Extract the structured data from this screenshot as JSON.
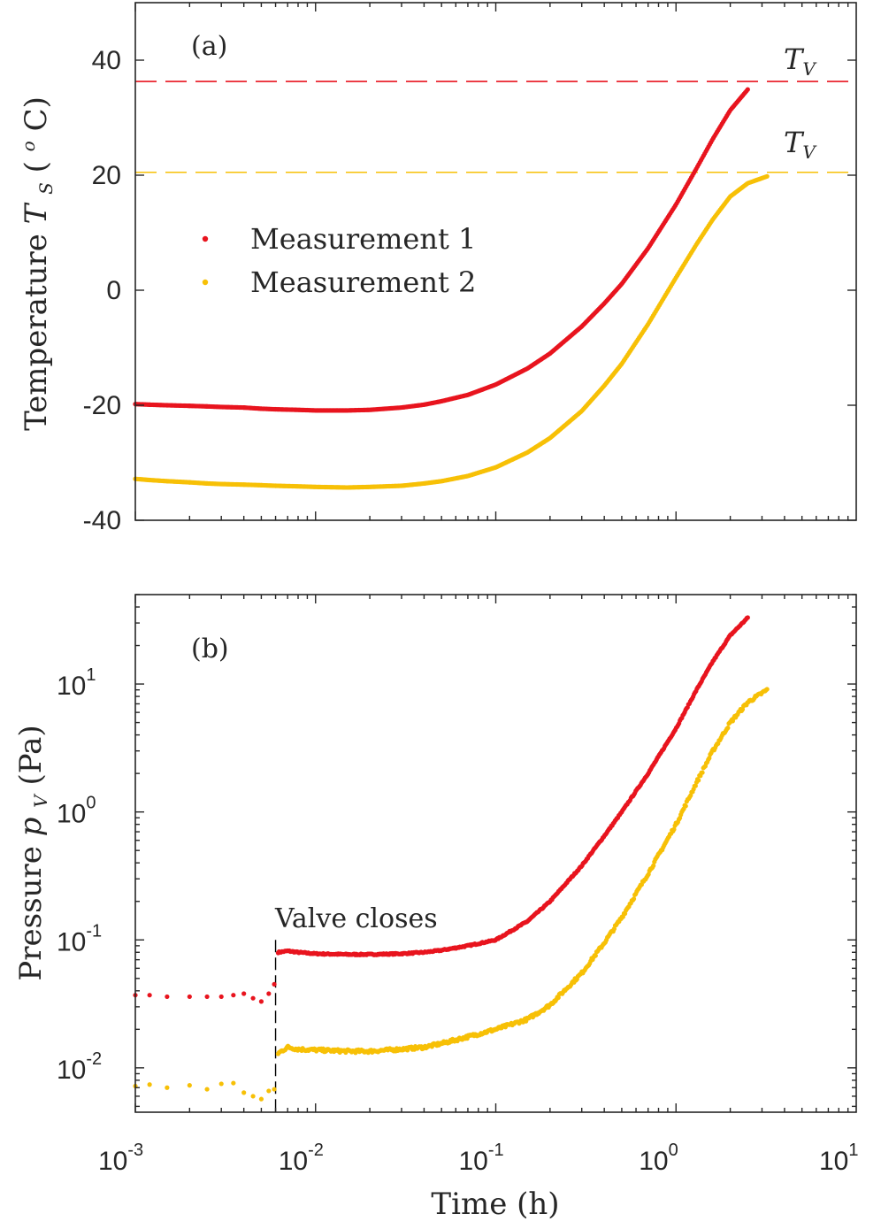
{
  "colors": {
    "measurement1": "#e8141e",
    "measurement2": "#f7c006",
    "axis": "#262626",
    "valve_line": "#000000"
  },
  "chart_data": [
    {
      "type": "scatter",
      "panel_label": "(a)",
      "ylabel_text": "Temperature",
      "ylabel_symbol": "T",
      "ylabel_subscript": "S",
      "ylabel_units_open": " (",
      "ylabel_units_sup": "o",
      "ylabel_units_close": "C)",
      "xscale": "log",
      "xlim": [
        0.001,
        10
      ],
      "ylim": [
        -40,
        50
      ],
      "yticks": [
        -40,
        -20,
        0,
        20,
        40
      ],
      "ytick_labels": [
        "-40",
        "-20",
        "0",
        "20",
        "40"
      ],
      "legend": {
        "position": "center-left",
        "entries": [
          "Measurement 1",
          "Measurement 2"
        ]
      },
      "hlines": [
        {
          "series": "Measurement 1",
          "y": 36.3,
          "label_symbol": "T",
          "label_subscript": "V",
          "style": "dashed"
        },
        {
          "series": "Measurement 2",
          "y": 20.5,
          "label_symbol": "T",
          "label_subscript": "V",
          "style": "dashed"
        }
      ],
      "series": [
        {
          "name": "Measurement 1",
          "x": [
            0.001,
            0.0012,
            0.0015,
            0.002,
            0.0025,
            0.003,
            0.004,
            0.005,
            0.006,
            0.008,
            0.01,
            0.015,
            0.02,
            0.03,
            0.04,
            0.05,
            0.07,
            0.1,
            0.15,
            0.2,
            0.3,
            0.4,
            0.5,
            0.7,
            1.0,
            1.3,
            1.6,
            2.0,
            2.5
          ],
          "y": [
            -19.8,
            -19.9,
            -20.0,
            -20.1,
            -20.2,
            -20.3,
            -20.4,
            -20.6,
            -20.7,
            -20.8,
            -20.9,
            -20.9,
            -20.8,
            -20.4,
            -19.9,
            -19.3,
            -18.2,
            -16.4,
            -13.6,
            -11.0,
            -6.3,
            -2.3,
            1.1,
            7.3,
            14.9,
            21.2,
            26.3,
            31.3,
            34.9
          ]
        },
        {
          "name": "Measurement 2",
          "x": [
            0.001,
            0.0012,
            0.0015,
            0.002,
            0.0025,
            0.003,
            0.004,
            0.005,
            0.006,
            0.008,
            0.01,
            0.015,
            0.02,
            0.03,
            0.04,
            0.05,
            0.07,
            0.1,
            0.15,
            0.2,
            0.3,
            0.4,
            0.5,
            0.7,
            1.0,
            1.3,
            1.6,
            2.0,
            2.5,
            3.2
          ],
          "y": [
            -32.8,
            -33.0,
            -33.2,
            -33.4,
            -33.6,
            -33.7,
            -33.8,
            -33.9,
            -34.0,
            -34.1,
            -34.2,
            -34.3,
            -34.2,
            -34.0,
            -33.6,
            -33.2,
            -32.3,
            -30.8,
            -28.2,
            -25.7,
            -21.0,
            -16.6,
            -12.8,
            -5.9,
            2.2,
            8.0,
            12.3,
            16.3,
            18.6,
            19.8
          ]
        }
      ]
    },
    {
      "type": "scatter",
      "panel_label": "(b)",
      "ylabel_text": "Pressure",
      "ylabel_symbol": "p",
      "ylabel_subscript": "V",
      "ylabel_units": " (Pa)",
      "xlabel": "Time (h)",
      "xscale": "log",
      "yscale": "log",
      "xlim": [
        0.001,
        10
      ],
      "ylim": [
        0.0045,
        50
      ],
      "xticks": [
        0.001,
        0.01,
        0.1,
        1,
        10
      ],
      "xtick_exponents": [
        "-3",
        "-2",
        "-1",
        "0",
        "1"
      ],
      "yticks": [
        0.01,
        0.1,
        1,
        10
      ],
      "ytick_exponents": [
        "-2",
        "-1",
        "0",
        "1"
      ],
      "tick_base": "10",
      "annotation": {
        "text": "Valve closes",
        "x": 0.006
      },
      "series": [
        {
          "name": "Measurement 1",
          "x": [
            0.001,
            0.0012,
            0.0015,
            0.002,
            0.0025,
            0.003,
            0.0035,
            0.004,
            0.0045,
            0.005,
            0.0055,
            0.0059,
            0.0062,
            0.007,
            0.008,
            0.01,
            0.015,
            0.02,
            0.03,
            0.04,
            0.05,
            0.07,
            0.1,
            0.15,
            0.2,
            0.3,
            0.4,
            0.5,
            0.7,
            1.0,
            1.3,
            1.6,
            2.0,
            2.5
          ],
          "y": [
            0.037,
            0.037,
            0.036,
            0.036,
            0.036,
            0.036,
            0.037,
            0.038,
            0.035,
            0.033,
            0.038,
            0.045,
            0.08,
            0.082,
            0.08,
            0.078,
            0.077,
            0.077,
            0.078,
            0.08,
            0.083,
            0.09,
            0.1,
            0.14,
            0.2,
            0.38,
            0.65,
            1.0,
            2.0,
            4.5,
            9.0,
            15.0,
            24.0,
            33.0
          ]
        },
        {
          "name": "Measurement 2",
          "x": [
            0.001,
            0.0012,
            0.0015,
            0.002,
            0.0025,
            0.003,
            0.0035,
            0.004,
            0.0045,
            0.005,
            0.0055,
            0.0059,
            0.0062,
            0.007,
            0.008,
            0.01,
            0.015,
            0.02,
            0.03,
            0.04,
            0.05,
            0.07,
            0.1,
            0.15,
            0.2,
            0.3,
            0.4,
            0.5,
            0.7,
            1.0,
            1.3,
            1.6,
            2.0,
            2.5,
            3.2
          ],
          "y": [
            0.0072,
            0.0074,
            0.007,
            0.0073,
            0.0068,
            0.0075,
            0.0076,
            0.0064,
            0.006,
            0.0057,
            0.0066,
            0.0068,
            0.013,
            0.0145,
            0.014,
            0.0138,
            0.0135,
            0.0135,
            0.014,
            0.0145,
            0.0155,
            0.0175,
            0.02,
            0.024,
            0.031,
            0.055,
            0.095,
            0.15,
            0.33,
            0.8,
            1.7,
            3.0,
            5.0,
            7.2,
            9.0
          ]
        }
      ]
    }
  ]
}
